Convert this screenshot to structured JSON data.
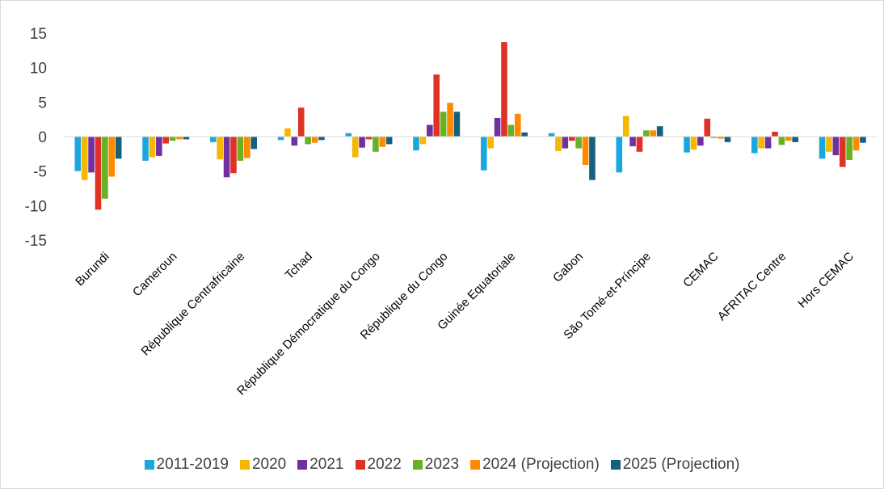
{
  "chart_data": {
    "type": "bar",
    "categories": [
      "Burundi",
      "Cameroun",
      "République Centrafricaine",
      "Tchad",
      "République Démocratique du Congo",
      "République du Congo",
      "Guinée Equatoriale",
      "Gabon",
      "São Tomé-et-Príncipe",
      "CEMAC",
      "AFRITAC Centre",
      "Hors CEMAC"
    ],
    "ylim": [
      -15,
      15
    ],
    "yticks": [
      "15",
      "10",
      "5",
      "0",
      "-5",
      "-10",
      "-15"
    ],
    "grid": false,
    "legend_position": "bottom",
    "series": [
      {
        "name": "2011-2019",
        "color": "#1aa7e0",
        "values": [
          -5.0,
          -3.5,
          -0.8,
          -0.5,
          0.5,
          -2.0,
          -4.9,
          0.5,
          -5.2,
          -2.3,
          -2.4,
          -3.2
        ]
      },
      {
        "name": "2020",
        "color": "#f5b700",
        "values": [
          -6.3,
          -3.0,
          -3.3,
          1.2,
          -3.0,
          -1.1,
          -1.7,
          -2.1,
          3.0,
          -1.9,
          -1.7,
          -2.2
        ]
      },
      {
        "name": "2021",
        "color": "#7030a0",
        "values": [
          -5.2,
          -2.8,
          -5.9,
          -1.3,
          -1.6,
          1.7,
          2.7,
          -1.7,
          -1.4,
          -1.3,
          -1.7,
          -2.7
        ]
      },
      {
        "name": "2022",
        "color": "#e03127",
        "values": [
          -10.6,
          -1.0,
          -5.3,
          4.2,
          -0.4,
          9.0,
          13.7,
          -0.6,
          -2.2,
          2.6,
          0.7,
          -4.4
        ]
      },
      {
        "name": "2023",
        "color": "#6ab023",
        "values": [
          -9.0,
          -0.6,
          -3.5,
          -1.1,
          -2.2,
          3.6,
          1.7,
          -1.7,
          0.9,
          -0.2,
          -1.2,
          -3.4
        ]
      },
      {
        "name": "2024 (Projection)",
        "color": "#ff8a00",
        "values": [
          -5.8,
          -0.4,
          -3.1,
          -0.9,
          -1.5,
          4.9,
          3.3,
          -4.1,
          0.9,
          -0.3,
          -0.6,
          -2.0
        ]
      },
      {
        "name": "2025 (Projection)",
        "color": "#17607d",
        "values": [
          -3.2,
          -0.4,
          -1.8,
          -0.5,
          -1.1,
          3.6,
          0.6,
          -6.3,
          1.5,
          -0.8,
          -0.8,
          -0.9
        ]
      }
    ]
  }
}
